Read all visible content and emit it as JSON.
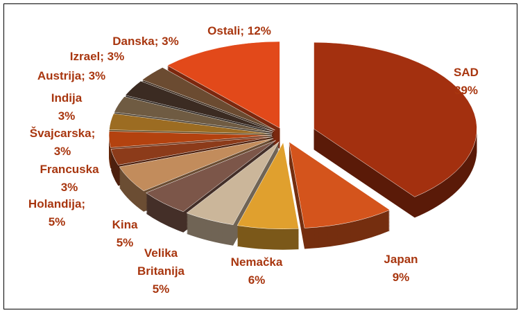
{
  "chart_data": {
    "type": "pie",
    "categories": [
      "SAD",
      "Japan",
      "Nemačka",
      "Velika Britanija",
      "Kina",
      "Holandija;",
      "Francuska",
      "Švajcarska;",
      "Indija",
      "Austrija;",
      "Izrael;",
      "Danska;",
      "Ostali;"
    ],
    "values": [
      39,
      9,
      6,
      5,
      5,
      5,
      3,
      3,
      3,
      3,
      3,
      3,
      12
    ],
    "value_labels": [
      "39%",
      "9%",
      "6%",
      "5%",
      "5%",
      "5%",
      "3%",
      "3%",
      "3%",
      "3%",
      "3%",
      "3%",
      "12%"
    ],
    "colors": [
      "#a3300f",
      "#d4541c",
      "#e0a02e",
      "#cbb69a",
      "#7c5649",
      "#c28c5c",
      "#8c3b1a",
      "#b3420f",
      "#9c6c22",
      "#6f5b42",
      "#3b2b22",
      "#6b4b31",
      "#e2491a"
    ]
  }
}
